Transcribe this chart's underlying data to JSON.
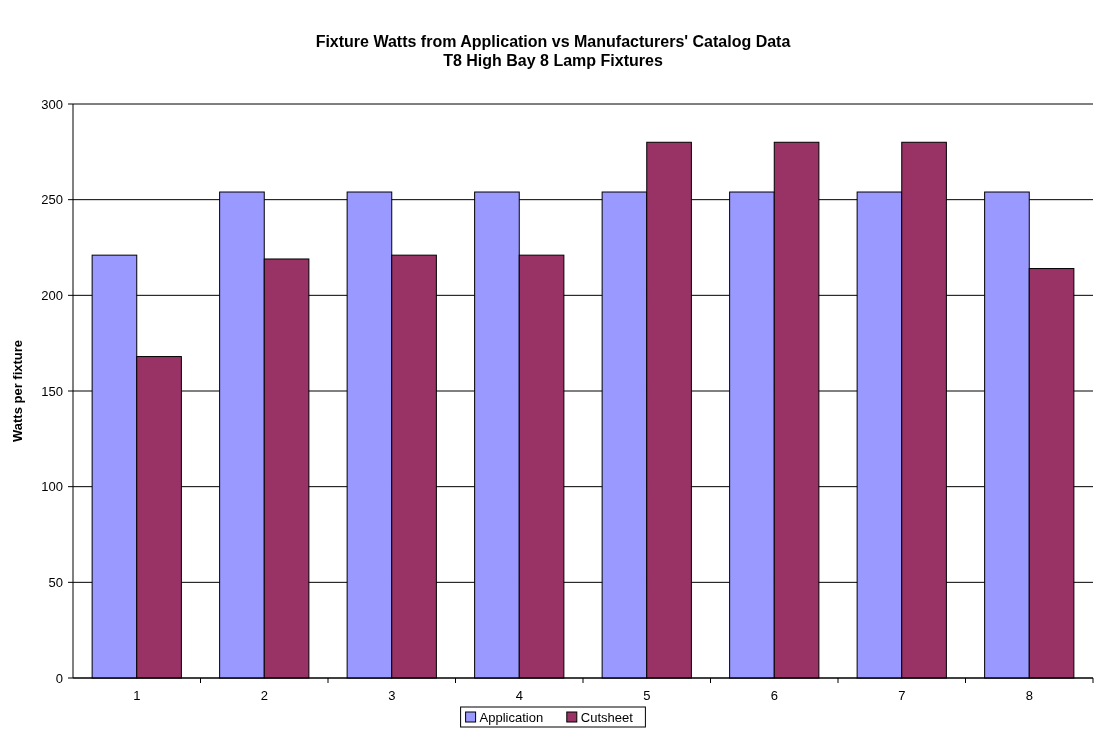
{
  "chart_data": {
    "type": "bar",
    "title": "Fixture Watts from Application vs Manufacturers' Catalog Data\nT8 High Bay 8 Lamp Fixtures",
    "ylabel": "Watts per fixture",
    "categories": [
      "1",
      "2",
      "3",
      "4",
      "5",
      "6",
      "7",
      "8"
    ],
    "series": [
      {
        "name": "Application",
        "color": "#9999ff",
        "values": [
          221,
          254,
          254,
          254,
          254,
          254,
          254,
          254
        ]
      },
      {
        "name": "Cutsheet",
        "color": "#993366",
        "values": [
          168,
          219,
          221,
          221,
          280,
          280,
          280,
          214
        ]
      }
    ],
    "ylim": [
      0,
      300
    ],
    "yticks": [
      0,
      50,
      100,
      150,
      200,
      250,
      300
    ],
    "grid": "y",
    "legend": "bottom"
  }
}
